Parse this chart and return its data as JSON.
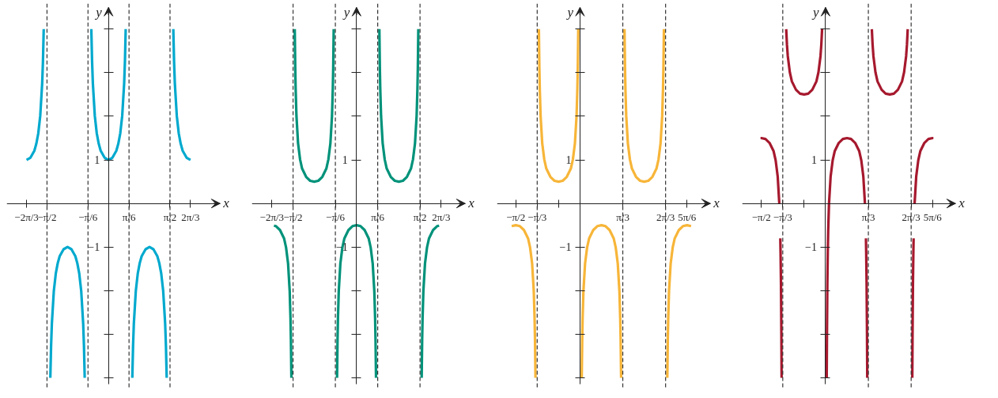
{
  "chart_data": [
    {
      "type": "line",
      "xlabel": "x",
      "ylabel": "y",
      "xlim": [
        -2.6,
        2.85
      ],
      "ylim": [
        -4.15,
        4.5
      ],
      "xticks": [
        {
          "value": -2.094,
          "label": "−2π/3"
        },
        {
          "value": -1.571,
          "label": "−π/2"
        },
        {
          "value": -0.524,
          "label": "−π/6"
        },
        {
          "value": 0.524,
          "label": "π/6"
        },
        {
          "value": 1.571,
          "label": "π/2"
        },
        {
          "value": 2.094,
          "label": "2π/3"
        }
      ],
      "yticks": [
        {
          "value": -4,
          "label": null
        },
        {
          "value": -3,
          "label": null
        },
        {
          "value": -2,
          "label": null
        },
        {
          "value": -1,
          "label": "−1"
        },
        {
          "value": 1,
          "label": "1"
        },
        {
          "value": 2,
          "label": null
        },
        {
          "value": 3,
          "label": null
        },
        {
          "value": 4,
          "label": null
        }
      ],
      "ref_lines": [
        {
          "axis": "x",
          "value": -1.571,
          "line_style": "dashed",
          "color": "#333333"
        },
        {
          "axis": "x",
          "value": -0.524,
          "line_style": "dashed",
          "color": "#333333"
        },
        {
          "axis": "x",
          "value": 0.524,
          "line_style": "dashed",
          "color": "#333333"
        },
        {
          "axis": "x",
          "value": 1.571,
          "line_style": "dashed",
          "color": "#333333"
        }
      ],
      "series": [
        {
          "color": "#00a9ce",
          "line_style": "solid",
          "x": [
            -2.094,
            -1.994,
            -1.894,
            -1.844,
            -1.794,
            -1.744,
            -1.694,
            -1.674,
            -1.655,
            null,
            -1.486,
            -1.467,
            -1.447,
            -1.397,
            -1.347,
            -1.297,
            -1.247,
            -1.147,
            -1.047,
            -0.947,
            -0.847,
            -0.797,
            -0.747,
            -0.697,
            -0.647,
            -0.627,
            -0.608,
            null,
            -0.439,
            -0.42,
            -0.4,
            -0.35,
            -0.3,
            -0.25,
            -0.2,
            -0.1,
            0,
            0.1,
            0.2,
            0.25,
            0.3,
            0.35,
            0.4,
            0.42,
            0.439,
            null,
            0.608,
            0.627,
            0.647,
            0.697,
            0.747,
            0.797,
            0.847,
            0.947,
            1.047,
            1.147,
            1.247,
            1.297,
            1.347,
            1.397,
            1.447,
            1.467,
            1.486,
            null,
            1.655,
            1.674,
            1.694,
            1.744,
            1.794,
            1.844,
            1.894,
            1.994,
            2.094
          ],
          "values": [
            1,
            1.05,
            1.21,
            1.37,
            1.61,
            2.01,
            2.76,
            3.27,
            4,
            null,
            -4,
            -3.27,
            -2.76,
            -2.01,
            -1.61,
            -1.37,
            -1.21,
            -1.05,
            -1,
            -1.05,
            -1.21,
            -1.37,
            -1.61,
            -2.01,
            -2.76,
            -3.27,
            -4,
            null,
            4,
            3.27,
            2.76,
            2.01,
            1.61,
            1.37,
            1.21,
            1.05,
            1,
            1.05,
            1.21,
            1.37,
            1.61,
            2.01,
            2.76,
            3.27,
            4,
            null,
            -4,
            -3.27,
            -2.76,
            -2.01,
            -1.61,
            -1.37,
            -1.21,
            -1.05,
            -1,
            -1.05,
            -1.21,
            -1.37,
            -1.61,
            -2.01,
            -2.76,
            -3.27,
            -4,
            null,
            4,
            3.27,
            2.76,
            2.01,
            1.61,
            1.37,
            1.21,
            1.05,
            1
          ]
        }
      ]
    },
    {
      "type": "line",
      "xlabel": "x",
      "ylabel": "y",
      "xlim": [
        -2.59,
        2.69
      ],
      "ylim": [
        -4.15,
        4.5
      ],
      "xticks": [
        {
          "value": -2.094,
          "label": "−2π/3"
        },
        {
          "value": -1.571,
          "label": "−π/2"
        },
        {
          "value": -0.524,
          "label": "−π/6"
        },
        {
          "value": 0.524,
          "label": "π/6"
        },
        {
          "value": 1.571,
          "label": "π/2"
        },
        {
          "value": 2.094,
          "label": "2π/3"
        }
      ],
      "yticks": [
        {
          "value": -4,
          "label": null
        },
        {
          "value": -3,
          "label": null
        },
        {
          "value": -2,
          "label": null
        },
        {
          "value": -1,
          "label": "−1"
        },
        {
          "value": 1,
          "label": "1"
        },
        {
          "value": 2,
          "label": null
        },
        {
          "value": 3,
          "label": null
        },
        {
          "value": 4,
          "label": null
        }
      ],
      "ref_lines": [
        {
          "axis": "x",
          "value": -1.571,
          "line_style": "dashed",
          "color": "#333333"
        },
        {
          "axis": "x",
          "value": -0.524,
          "line_style": "dashed",
          "color": "#333333"
        },
        {
          "axis": "x",
          "value": 0.524,
          "line_style": "dashed",
          "color": "#333333"
        },
        {
          "axis": "x",
          "value": 1.571,
          "line_style": "dashed",
          "color": "#333333"
        }
      ],
      "series": [
        {
          "color": "#00927a",
          "line_style": "solid",
          "x": [
            -2.044,
            -1.994,
            -1.894,
            -1.794,
            -1.744,
            -1.694,
            -1.654,
            -1.634,
            -1.624,
            -1.612,
            null,
            -1.529,
            -1.517,
            -1.507,
            -1.487,
            -1.447,
            -1.397,
            -1.347,
            -1.247,
            -1.147,
            -1.047,
            -0.947,
            -0.847,
            -0.747,
            -0.697,
            -0.647,
            -0.607,
            -0.587,
            -0.577,
            -0.565,
            null,
            -0.482,
            -0.47,
            -0.46,
            -0.44,
            -0.4,
            -0.35,
            -0.3,
            -0.2,
            -0.1,
            0,
            0.1,
            0.2,
            0.3,
            0.35,
            0.4,
            0.44,
            0.46,
            0.47,
            0.482,
            null,
            0.565,
            0.577,
            0.587,
            0.607,
            0.647,
            0.697,
            0.747,
            0.847,
            0.947,
            1.047,
            1.147,
            1.247,
            1.347,
            1.397,
            1.447,
            1.487,
            1.507,
            1.517,
            1.529,
            null,
            1.612,
            1.624,
            1.634,
            1.654,
            1.694,
            1.744,
            1.794,
            1.894,
            1.994,
            2.044
          ],
          "values": [
            -0.51,
            -0.52,
            -0.61,
            -0.8,
            -1.01,
            -1.38,
            -2.01,
            -2.64,
            -3.12,
            -4,
            null,
            4,
            3.12,
            2.64,
            2.01,
            1.38,
            1.01,
            0.8,
            0.61,
            0.52,
            0.5,
            0.52,
            0.61,
            0.8,
            1.01,
            1.38,
            2.01,
            2.64,
            3.12,
            4,
            null,
            -4,
            -3.12,
            -2.64,
            -2.01,
            -1.38,
            -1.01,
            -0.8,
            -0.61,
            -0.52,
            -0.5,
            -0.52,
            -0.61,
            -0.8,
            -1.01,
            -1.38,
            -2.01,
            -2.64,
            -3.12,
            -4,
            null,
            4,
            3.12,
            2.64,
            2.01,
            1.38,
            1.01,
            0.8,
            0.61,
            0.52,
            0.5,
            0.52,
            0.61,
            0.8,
            1.01,
            1.38,
            2.01,
            2.64,
            3.12,
            4,
            null,
            -4,
            -3.12,
            -2.64,
            -2.01,
            -1.38,
            -1.01,
            -0.8,
            -0.61,
            -0.52,
            -0.51
          ]
        }
      ]
    },
    {
      "type": "line",
      "xlabel": "x",
      "ylabel": "y",
      "xlim": [
        -2.03,
        3.19
      ],
      "ylim": [
        -4.15,
        4.5
      ],
      "xticks": [
        {
          "value": -1.571,
          "label": "−π/2"
        },
        {
          "value": -1.047,
          "label": "−π/3"
        },
        {
          "value": -0.524,
          "label": null
        },
        {
          "value": 1.047,
          "label": "π/3"
        },
        {
          "value": 2.094,
          "label": "2π/3"
        },
        {
          "value": 2.618,
          "label": "5π/6"
        }
      ],
      "yticks": [
        {
          "value": -4,
          "label": null
        },
        {
          "value": -3,
          "label": null
        },
        {
          "value": -2,
          "label": null
        },
        {
          "value": -1,
          "label": "−1"
        },
        {
          "value": 1,
          "label": "1"
        },
        {
          "value": 2,
          "label": null
        },
        {
          "value": 3,
          "label": null
        },
        {
          "value": 4,
          "label": null
        }
      ],
      "ref_lines": [
        {
          "axis": "x",
          "value": -1.047,
          "line_style": "dashed",
          "color": "#333333"
        },
        {
          "axis": "x",
          "value": 1.047,
          "line_style": "dashed",
          "color": "#333333"
        },
        {
          "axis": "x",
          "value": 2.094,
          "line_style": "dashed",
          "color": "#333333"
        }
      ],
      "series": [
        {
          "color": "#f7b538",
          "line_style": "solid",
          "x": [
            -1.671,
            -1.571,
            -1.471,
            -1.371,
            -1.271,
            -1.221,
            -1.171,
            -1.131,
            -1.111,
            -1.101,
            -1.089,
            null,
            -1.006,
            -0.994,
            -0.984,
            -0.964,
            -0.924,
            -0.874,
            -0.824,
            -0.724,
            -0.624,
            -0.524,
            -0.424,
            -0.324,
            -0.224,
            -0.174,
            -0.124,
            -0.084,
            -0.064,
            -0.054,
            -0.042,
            null,
            0.042,
            0.054,
            0.064,
            0.084,
            0.124,
            0.174,
            0.224,
            0.324,
            0.424,
            0.524,
            0.624,
            0.724,
            0.824,
            0.874,
            0.924,
            0.964,
            0.984,
            0.994,
            1.006,
            null,
            1.089,
            1.101,
            1.111,
            1.131,
            1.171,
            1.221,
            1.271,
            1.371,
            1.471,
            1.571,
            1.671,
            1.771,
            1.871,
            1.921,
            1.971,
            2.011,
            2.031,
            2.041,
            2.053,
            null,
            2.136,
            2.148,
            2.158,
            2.178,
            2.218,
            2.268,
            2.318,
            2.418,
            2.518,
            2.618,
            2.718
          ],
          "values": [
            -0.52,
            -0.5,
            -0.52,
            -0.61,
            -0.8,
            -1.01,
            -1.38,
            -2.01,
            -2.64,
            -3.12,
            -4,
            null,
            4,
            3.12,
            2.64,
            2.01,
            1.38,
            1.01,
            0.8,
            0.61,
            0.52,
            0.5,
            0.52,
            0.61,
            0.8,
            1.01,
            1.38,
            2.01,
            2.64,
            3.12,
            4,
            null,
            -4,
            -3.12,
            -2.64,
            -2.01,
            -1.38,
            -1.01,
            -0.8,
            -0.61,
            -0.52,
            -0.5,
            -0.52,
            -0.61,
            -0.8,
            -1.01,
            -1.38,
            -2.01,
            -2.64,
            -3.12,
            -4,
            null,
            4,
            3.12,
            2.64,
            2.01,
            1.38,
            1.01,
            0.8,
            0.61,
            0.52,
            0.5,
            0.52,
            0.61,
            0.8,
            1.01,
            1.38,
            2.01,
            2.64,
            3.12,
            4,
            null,
            -4,
            -3.12,
            -2.64,
            -2.01,
            -1.38,
            -1.01,
            -0.8,
            -0.61,
            -0.52,
            -0.5,
            -0.52
          ]
        }
      ]
    },
    {
      "type": "line",
      "xlabel": "x",
      "ylabel": "y",
      "xlim": [
        -2.04,
        3.18
      ],
      "ylim": [
        -4.15,
        4.5
      ],
      "xticks": [
        {
          "value": -1.571,
          "label": "−π/2"
        },
        {
          "value": -1.047,
          "label": "−π/3"
        },
        {
          "value": -0.524,
          "label": null
        },
        {
          "value": 1.047,
          "label": "π/3"
        },
        {
          "value": 2.094,
          "label": "2π/3"
        },
        {
          "value": 2.618,
          "label": "5π/6"
        }
      ],
      "yticks": [
        {
          "value": -4,
          "label": null
        },
        {
          "value": -3,
          "label": null
        },
        {
          "value": -2,
          "label": null
        },
        {
          "value": -1,
          "label": "−1"
        },
        {
          "value": 1,
          "label": "1"
        },
        {
          "value": 2,
          "label": null
        },
        {
          "value": 3,
          "label": null
        },
        {
          "value": 4,
          "label": null
        }
      ],
      "ref_lines": [
        {
          "axis": "x",
          "value": -1.047,
          "line_style": "dashed",
          "color": "#333333"
        },
        {
          "axis": "x",
          "value": 1.047,
          "line_style": "dashed",
          "color": "#333333"
        },
        {
          "axis": "x",
          "value": 2.094,
          "line_style": "dashed",
          "color": "#333333"
        }
      ],
      "series": [
        {
          "color": "#a6192e",
          "line_style": "solid",
          "x": [
            -1.591,
            -1.571,
            -1.471,
            -1.371,
            -1.271,
            -1.221,
            -1.171,
            -1.131,
            null,
            -1.107,
            -1.101,
            -1.091,
            -1.081,
            -1.075,
            null,
            -0.963,
            -0.944,
            -0.924,
            -0.874,
            -0.824,
            -0.724,
            -0.624,
            -0.524,
            -0.424,
            -0.324,
            -0.224,
            -0.174,
            -0.124,
            -0.104,
            -0.085,
            null,
            0.028,
            0.034,
            0.044,
            0.054,
            0.064,
            0.084,
            0.124,
            0.174,
            0.224,
            0.324,
            0.424,
            0.524,
            0.624,
            0.724,
            0.824,
            0.874,
            0.924,
            0.964,
            null,
            0.988,
            0.994,
            1.004,
            1.014,
            1.02,
            null,
            1.132,
            1.151,
            1.171,
            1.221,
            1.271,
            1.371,
            1.471,
            1.571,
            1.671,
            1.771,
            1.871,
            1.921,
            1.971,
            1.991,
            2.01,
            null,
            2.122,
            2.128,
            2.138,
            2.148,
            2.154,
            null,
            2.178,
            2.218,
            2.268,
            2.318,
            2.418,
            2.518,
            2.618,
            2.638
          ],
          "values": [
            1.5,
            1.5,
            1.48,
            1.39,
            1.2,
            0.99,
            0.62,
            -0.01,
            null,
            -0.8,
            -1.12,
            -1.83,
            -3.01,
            -4,
            null,
            4,
            3.64,
            3.38,
            3.01,
            2.8,
            2.61,
            2.52,
            2.5,
            2.52,
            2.61,
            2.8,
            3.01,
            3.38,
            3.64,
            4,
            null,
            -4,
            -3.01,
            -1.83,
            -1.12,
            -0.64,
            -0.01,
            0.62,
            0.99,
            1.2,
            1.39,
            1.48,
            1.5,
            1.48,
            1.39,
            1.2,
            0.99,
            0.62,
            -0.01,
            null,
            -0.8,
            -1.12,
            -1.83,
            -3.01,
            -4,
            null,
            4,
            3.64,
            3.38,
            3.01,
            2.8,
            2.61,
            2.52,
            2.5,
            2.52,
            2.61,
            2.8,
            3.01,
            3.38,
            3.64,
            4,
            null,
            -4,
            -3.01,
            -1.83,
            -1.12,
            -0.8,
            null,
            -0.01,
            0.62,
            0.99,
            1.2,
            1.39,
            1.48,
            1.5,
            1.5
          ]
        }
      ]
    }
  ]
}
